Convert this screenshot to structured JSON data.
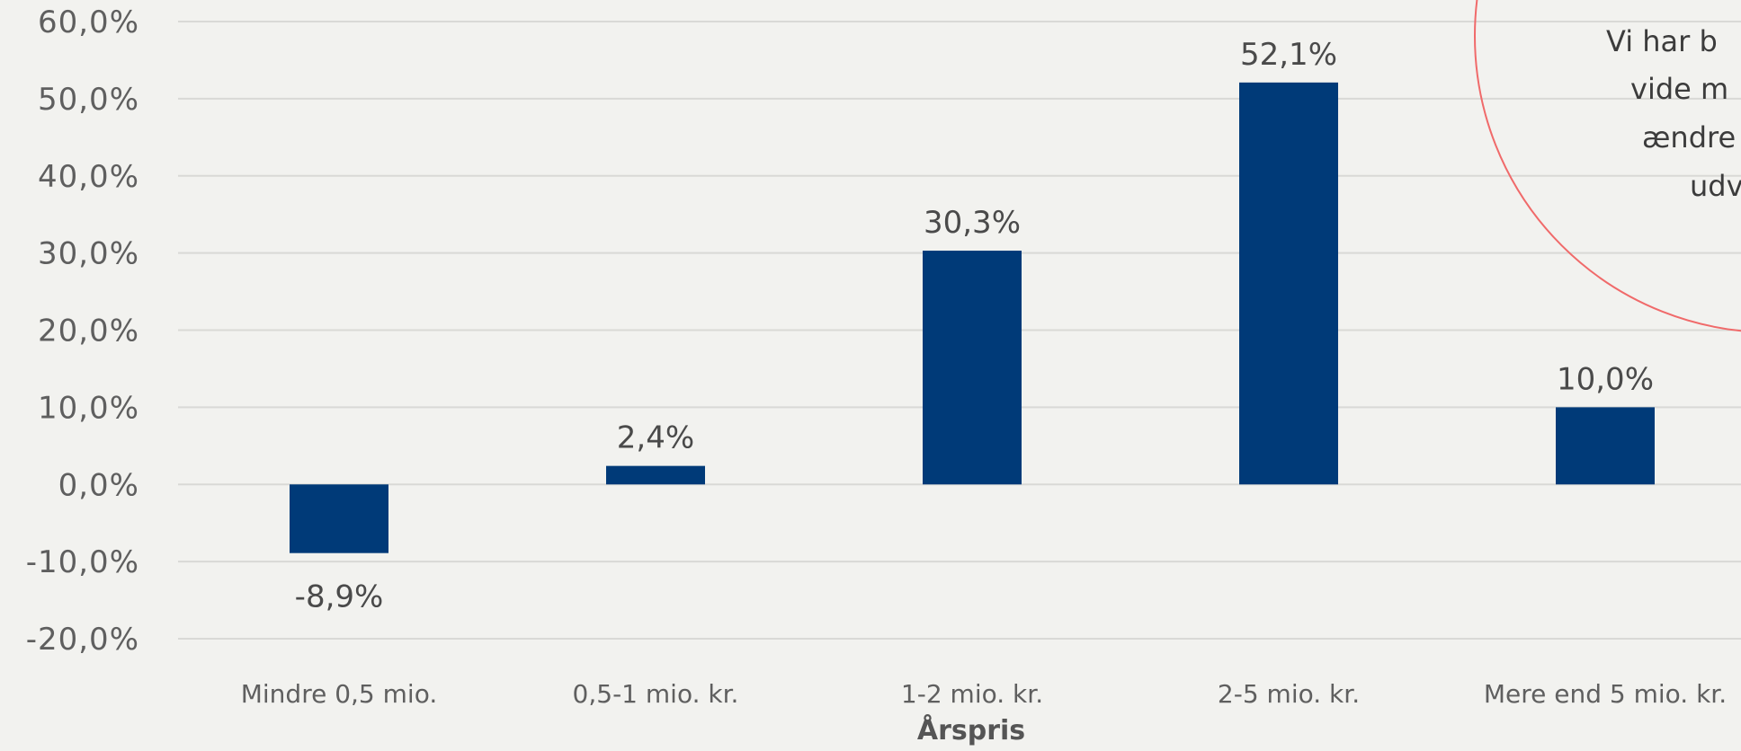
{
  "chart_data": {
    "type": "bar",
    "title": "",
    "xlabel": "Årspris",
    "ylabel": "",
    "categories": [
      "Mindre 0,5 mio.",
      "0,5-1 mio. kr.",
      "1-2 mio. kr.",
      "2-5 mio. kr.",
      "Mere end 5 mio. kr."
    ],
    "values": [
      -8.9,
      2.4,
      30.3,
      52.1,
      10.0
    ],
    "value_labels": [
      "-8,9%",
      "2,4%",
      "30,3%",
      "52,1%",
      "10,0%"
    ],
    "ylim": [
      -20,
      60
    ],
    "yticks": [
      60,
      50,
      40,
      30,
      20,
      10,
      0,
      -10,
      -20
    ],
    "ytick_labels": [
      "60,0%",
      "50,0%",
      "40,0%",
      "30,0%",
      "20,0%",
      "10,0%",
      "0,0%",
      "-10,0%",
      "-20,0%"
    ],
    "grid": true,
    "bar_color": "#003a78",
    "grid_color": "#d9d9d6"
  },
  "annotation": {
    "lines": [
      "Vi har b",
      "vide m",
      "ændre",
      "udv"
    ],
    "border_color": "#f06a6a"
  }
}
